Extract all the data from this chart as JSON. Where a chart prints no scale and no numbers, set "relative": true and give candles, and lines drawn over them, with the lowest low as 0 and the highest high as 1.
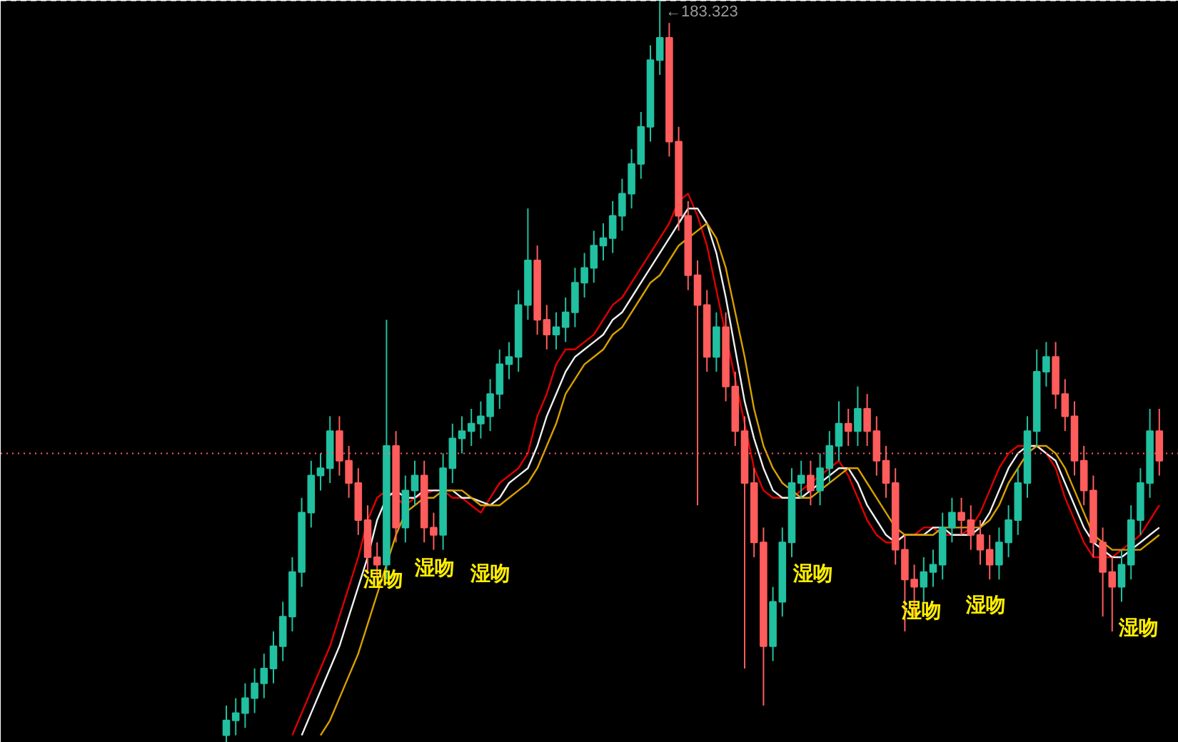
{
  "chart_data": {
    "type": "candlestick",
    "relative": true,
    "grid": false,
    "categories": [
      null,
      null,
      null,
      null,
      null,
      null,
      null,
      null,
      null,
      null,
      null,
      null,
      null,
      null,
      null,
      null,
      null,
      null,
      null,
      null,
      null,
      null,
      null,
      null,
      null,
      null,
      null,
      null,
      null,
      null,
      null,
      null,
      null,
      null,
      null,
      null,
      null,
      null,
      null,
      null,
      null,
      null,
      null,
      null,
      null,
      null,
      null,
      null,
      null,
      null,
      null,
      null,
      null,
      null,
      null,
      null,
      null,
      null,
      null,
      null,
      null,
      null,
      null,
      null,
      null,
      null,
      null,
      null,
      null,
      null,
      null,
      null,
      null,
      null,
      null,
      null,
      null,
      null,
      null,
      null,
      null,
      null,
      null,
      null,
      null,
      null,
      null,
      null,
      null,
      null,
      null,
      null,
      null,
      null,
      null,
      null,
      null,
      null,
      null,
      null
    ],
    "colors": [
      "#20c0a0",
      "#20c0a0",
      "#20c0a0",
      "#20c0a0",
      "#20c0a0",
      "#20c0a0",
      "#20c0a0",
      "#20c0a0",
      "#20c0a0",
      "#20c0a0",
      "#20c0a0",
      "#20c0a0",
      "#ff5c5c",
      "#ff5c5c",
      "#ff5c5c",
      "#ff5c5c",
      "#ff5c5c",
      "#20c0a0",
      "#ff5c5c",
      "#20c0a0",
      "#20c0a0",
      "#ff5c5c",
      "#ff5c5c",
      "#20c0a0",
      "#20c0a0",
      "#20c0a0",
      "#20c0a0",
      "#20c0a0",
      "#20c0a0",
      "#20c0a0",
      "#20c0a0",
      "#20c0a0",
      "#20c0a0",
      "#ff5c5c",
      "#ff5c5c",
      "#20c0a0",
      "#20c0a0",
      "#20c0a0",
      "#20c0a0",
      "#20c0a0",
      "#20c0a0",
      "#20c0a0",
      "#20c0a0",
      "#20c0a0",
      "#20c0a0",
      "#20c0a0",
      "#20c0a0",
      "#ff5c5c",
      "#ff5c5c",
      "#ff5c5c",
      "#ff5c5c",
      "#ff5c5c",
      "#20c0a0",
      "#ff5c5c",
      "#ff5c5c",
      "#ff5c5c",
      "#ff5c5c",
      "#ff5c5c",
      "#20c0a0",
      "#20c0a0",
      "#20c0a0",
      "#20c0a0",
      "#ff5c5c",
      "#20c0a0",
      "#20c0a0",
      "#20c0a0",
      "#ff5c5c",
      "#20c0a0",
      "#ff5c5c",
      "#ff5c5c",
      "#ff5c5c",
      "#ff5c5c",
      "#ff5c5c",
      "#ff5c5c",
      "#20c0a0",
      "#20c0a0",
      "#20c0a0",
      "#20c0a0",
      "#ff5c5c",
      "#ff5c5c",
      "#ff5c5c",
      "#ff5c5c",
      "#20c0a0",
      "#20c0a0",
      "#20c0a0",
      "#20c0a0",
      "#20c0a0",
      "#20c0a0",
      "#ff5c5c",
      "#ff5c5c",
      "#ff5c5c",
      "#ff5c5c",
      "#ff5c5c",
      "#ff5c5c",
      "#ff5c5c",
      "#20c0a0",
      "#20c0a0",
      "#20c0a0",
      "#20c0a0",
      "#ff5c5c"
    ],
    "ohlc": [
      [
        0.01,
        0.05,
        0,
        0.03
      ],
      [
        0.03,
        0.06,
        0.01,
        0.04
      ],
      [
        0.04,
        0.08,
        0.02,
        0.06
      ],
      [
        0.06,
        0.1,
        0.04,
        0.08
      ],
      [
        0.08,
        0.12,
        0.06,
        0.1
      ],
      [
        0.1,
        0.15,
        0.08,
        0.13
      ],
      [
        0.13,
        0.19,
        0.11,
        0.17
      ],
      [
        0.17,
        0.25,
        0.15,
        0.23
      ],
      [
        0.23,
        0.33,
        0.21,
        0.31
      ],
      [
        0.31,
        0.38,
        0.29,
        0.36
      ],
      [
        0.36,
        0.39,
        0.34,
        0.37
      ],
      [
        0.37,
        0.44,
        0.35,
        0.42
      ],
      [
        0.42,
        0.44,
        0.36,
        0.38
      ],
      [
        0.38,
        0.4,
        0.33,
        0.35
      ],
      [
        0.35,
        0.37,
        0.28,
        0.3
      ],
      [
        0.3,
        0.32,
        0.23,
        0.25
      ],
      [
        0.25,
        0.27,
        0.22,
        0.24
      ],
      [
        0.24,
        0.57,
        0.22,
        0.4
      ],
      [
        0.4,
        0.42,
        0.27,
        0.29
      ],
      [
        0.29,
        0.36,
        0.27,
        0.34
      ],
      [
        0.34,
        0.38,
        0.32,
        0.36
      ],
      [
        0.36,
        0.38,
        0.27,
        0.29
      ],
      [
        0.29,
        0.31,
        0.26,
        0.28
      ],
      [
        0.28,
        0.39,
        0.26,
        0.37
      ],
      [
        0.37,
        0.43,
        0.35,
        0.41
      ],
      [
        0.41,
        0.44,
        0.39,
        0.42
      ],
      [
        0.42,
        0.45,
        0.4,
        0.43
      ],
      [
        0.43,
        0.46,
        0.41,
        0.44
      ],
      [
        0.44,
        0.49,
        0.42,
        0.47
      ],
      [
        0.47,
        0.53,
        0.45,
        0.51
      ],
      [
        0.51,
        0.54,
        0.49,
        0.52
      ],
      [
        0.52,
        0.61,
        0.5,
        0.59
      ],
      [
        0.59,
        0.72,
        0.57,
        0.65
      ],
      [
        0.65,
        0.67,
        0.55,
        0.57
      ],
      [
        0.57,
        0.59,
        0.53,
        0.55
      ],
      [
        0.55,
        0.58,
        0.53,
        0.56
      ],
      [
        0.56,
        0.6,
        0.54,
        0.58
      ],
      [
        0.58,
        0.64,
        0.56,
        0.62
      ],
      [
        0.62,
        0.66,
        0.6,
        0.64
      ],
      [
        0.64,
        0.69,
        0.62,
        0.67
      ],
      [
        0.67,
        0.7,
        0.65,
        0.68
      ],
      [
        0.68,
        0.73,
        0.66,
        0.71
      ],
      [
        0.71,
        0.76,
        0.69,
        0.74
      ],
      [
        0.74,
        0.8,
        0.72,
        0.78
      ],
      [
        0.78,
        0.85,
        0.76,
        0.83
      ],
      [
        0.83,
        0.94,
        0.81,
        0.92
      ],
      [
        0.92,
        1.0,
        0.9,
        0.95
      ],
      [
        0.95,
        0.97,
        0.79,
        0.81
      ],
      [
        0.81,
        0.83,
        0.69,
        0.71
      ],
      [
        0.71,
        0.73,
        0.61,
        0.63
      ],
      [
        0.63,
        0.65,
        0.32,
        0.59
      ],
      [
        0.59,
        0.61,
        0.5,
        0.52
      ],
      [
        0.52,
        0.58,
        0.5,
        0.56
      ],
      [
        0.56,
        0.58,
        0.46,
        0.48
      ],
      [
        0.48,
        0.5,
        0.4,
        0.42
      ],
      [
        0.42,
        0.44,
        0.1,
        0.35
      ],
      [
        0.35,
        0.37,
        0.25,
        0.27
      ],
      [
        0.27,
        0.29,
        0.05,
        0.13
      ],
      [
        0.13,
        0.21,
        0.11,
        0.19
      ],
      [
        0.19,
        0.29,
        0.17,
        0.27
      ],
      [
        0.27,
        0.37,
        0.25,
        0.35
      ],
      [
        0.35,
        0.38,
        0.33,
        0.36
      ],
      [
        0.36,
        0.38,
        0.32,
        0.34
      ],
      [
        0.34,
        0.39,
        0.32,
        0.37
      ],
      [
        0.37,
        0.42,
        0.35,
        0.4
      ],
      [
        0.4,
        0.46,
        0.38,
        0.43
      ],
      [
        0.43,
        0.45,
        0.4,
        0.42
      ],
      [
        0.42,
        0.48,
        0.4,
        0.45
      ],
      [
        0.45,
        0.47,
        0.4,
        0.42
      ],
      [
        0.42,
        0.44,
        0.36,
        0.38
      ],
      [
        0.38,
        0.4,
        0.33,
        0.35
      ],
      [
        0.35,
        0.37,
        0.24,
        0.26
      ],
      [
        0.26,
        0.28,
        0.15,
        0.22
      ],
      [
        0.22,
        0.24,
        0.17,
        0.21
      ],
      [
        0.21,
        0.25,
        0.19,
        0.23
      ],
      [
        0.23,
        0.26,
        0.21,
        0.24
      ],
      [
        0.24,
        0.31,
        0.22,
        0.29
      ],
      [
        0.29,
        0.33,
        0.27,
        0.31
      ],
      [
        0.31,
        0.33,
        0.28,
        0.3
      ],
      [
        0.3,
        0.32,
        0.26,
        0.28
      ],
      [
        0.28,
        0.3,
        0.24,
        0.26
      ],
      [
        0.26,
        0.28,
        0.22,
        0.24
      ],
      [
        0.24,
        0.29,
        0.22,
        0.27
      ],
      [
        0.27,
        0.32,
        0.25,
        0.3
      ],
      [
        0.3,
        0.37,
        0.28,
        0.35
      ],
      [
        0.35,
        0.44,
        0.33,
        0.42
      ],
      [
        0.42,
        0.53,
        0.4,
        0.5
      ],
      [
        0.5,
        0.54,
        0.48,
        0.52
      ],
      [
        0.52,
        0.54,
        0.45,
        0.47
      ],
      [
        0.47,
        0.49,
        0.42,
        0.44
      ],
      [
        0.44,
        0.46,
        0.36,
        0.38
      ],
      [
        0.38,
        0.4,
        0.32,
        0.34
      ],
      [
        0.34,
        0.36,
        0.25,
        0.27
      ],
      [
        0.27,
        0.29,
        0.17,
        0.23
      ],
      [
        0.23,
        0.25,
        0.15,
        0.21
      ],
      [
        0.21,
        0.26,
        0.19,
        0.24
      ],
      [
        0.24,
        0.32,
        0.22,
        0.3
      ],
      [
        0.3,
        0.37,
        0.28,
        0.35
      ],
      [
        0.35,
        0.45,
        0.33,
        0.42
      ],
      [
        0.42,
        0.45,
        0.36,
        0.38
      ]
    ],
    "series": [
      {
        "type": "line",
        "color": "#e00000",
        "values": [
          null,
          null,
          null,
          null,
          null,
          null,
          null,
          0.01,
          0.04,
          0.07,
          0.1,
          0.13,
          0.17,
          0.21,
          0.25,
          0.3,
          0.33,
          0.34,
          0.33,
          0.32,
          0.33,
          null,
          0.34,
          0.34,
          0.33,
          0.33,
          0.32,
          0.31,
          0.33,
          0.35,
          0.36,
          0.37,
          0.39,
          0.44,
          0.47,
          0.51,
          0.53,
          0.53,
          0.54,
          0.55,
          0.57,
          0.59,
          0.6,
          0.62,
          0.64,
          0.66,
          0.68,
          0.7,
          0.73,
          0.74,
          0.71,
          0.67,
          0.61,
          null,
          null,
          null,
          0.37,
          0.34,
          0.33,
          0.33,
          0.33,
          0.34,
          0.35,
          0.36,
          0.37,
          0.38,
          0.36,
          0.33,
          0.3,
          0.28,
          0.27,
          0.27,
          0.28,
          0.28,
          0.29,
          0.29,
          0.28,
          0.28,
          0.28,
          0.29,
          0.31,
          0.34,
          0.37,
          0.39,
          0.4,
          0.4,
          0.4,
          0.39,
          0.37,
          0.33,
          0.3,
          0.27,
          0.25,
          0.25,
          0.25,
          0.26,
          0.27,
          0.28,
          0.3,
          0.32
        ]
      },
      {
        "type": "line",
        "color": "#f0f0f0",
        "values": [
          null,
          null,
          null,
          null,
          null,
          null,
          null,
          null,
          0.01,
          0.04,
          0.07,
          0.1,
          0.13,
          0.17,
          0.21,
          0.25,
          0.3,
          0.33,
          0.34,
          0.33,
          0.33,
          0.34,
          0.34,
          0.34,
          0.34,
          0.33,
          0.33,
          null,
          0.32,
          0.33,
          0.35,
          0.36,
          0.37,
          0.4,
          0.44,
          0.47,
          0.5,
          0.52,
          0.53,
          0.54,
          0.55,
          0.57,
          0.58,
          0.6,
          0.62,
          0.64,
          0.66,
          0.68,
          0.7,
          0.72,
          0.72,
          0.7,
          0.66,
          0.6,
          0.53,
          0.46,
          0.41,
          0.37,
          0.34,
          0.33,
          0.33,
          0.33,
          0.34,
          0.35,
          0.36,
          0.37,
          0.37,
          0.35,
          0.32,
          0.3,
          0.28,
          0.27,
          0.28,
          null,
          0.28,
          0.29,
          0.29,
          0.28,
          0.28,
          0.28,
          0.29,
          0.31,
          0.34,
          0.37,
          0.39,
          0.4,
          0.4,
          0.39,
          0.38,
          0.35,
          0.32,
          0.29,
          0.27,
          0.26,
          0.25,
          0.25,
          0.26,
          0.27,
          0.28,
          0.29
        ]
      },
      {
        "type": "line",
        "color": "#d8a000",
        "values": [
          null,
          null,
          null,
          null,
          null,
          null,
          null,
          null,
          null,
          null,
          0.01,
          0.03,
          0.06,
          0.09,
          0.12,
          0.16,
          0.2,
          0.24,
          0.28,
          0.31,
          0.32,
          0.33,
          0.33,
          0.34,
          0.34,
          0.34,
          0.33,
          0.32,
          0.32,
          0.32,
          0.33,
          0.34,
          0.35,
          0.37,
          0.4,
          0.43,
          0.47,
          0.49,
          0.51,
          0.52,
          0.53,
          0.55,
          0.56,
          0.58,
          0.6,
          0.62,
          0.63,
          0.65,
          0.67,
          0.68,
          0.69,
          0.7,
          0.68,
          0.64,
          0.58,
          0.52,
          0.45,
          0.4,
          0.37,
          0.35,
          0.34,
          0.33,
          0.33,
          0.34,
          0.35,
          0.36,
          0.37,
          0.37,
          0.35,
          0.33,
          0.31,
          0.29,
          0.28,
          0.28,
          0.28,
          0.28,
          0.29,
          0.29,
          0.29,
          0.29,
          0.29,
          0.3,
          0.32,
          0.35,
          0.37,
          0.39,
          0.4,
          0.4,
          0.39,
          0.37,
          0.34,
          0.31,
          0.28,
          0.27,
          0.26,
          0.26,
          0.26,
          0.26,
          0.27,
          0.28
        ]
      }
    ],
    "ref_lines": [
      {
        "axis": "y",
        "value": 0.39,
        "color": "#ff6060",
        "line_style": "dotted"
      },
      {
        "axis": "y",
        "value": 1.0,
        "color": "#9a9a9a",
        "line_style": "dashed"
      }
    ],
    "annotations": [
      {
        "text": "←183.323",
        "y": 1.0
      },
      "湿吻",
      "湿吻",
      "湿吻",
      "湿吻",
      "湿吻",
      "湿吻",
      "湿吻"
    ]
  }
}
